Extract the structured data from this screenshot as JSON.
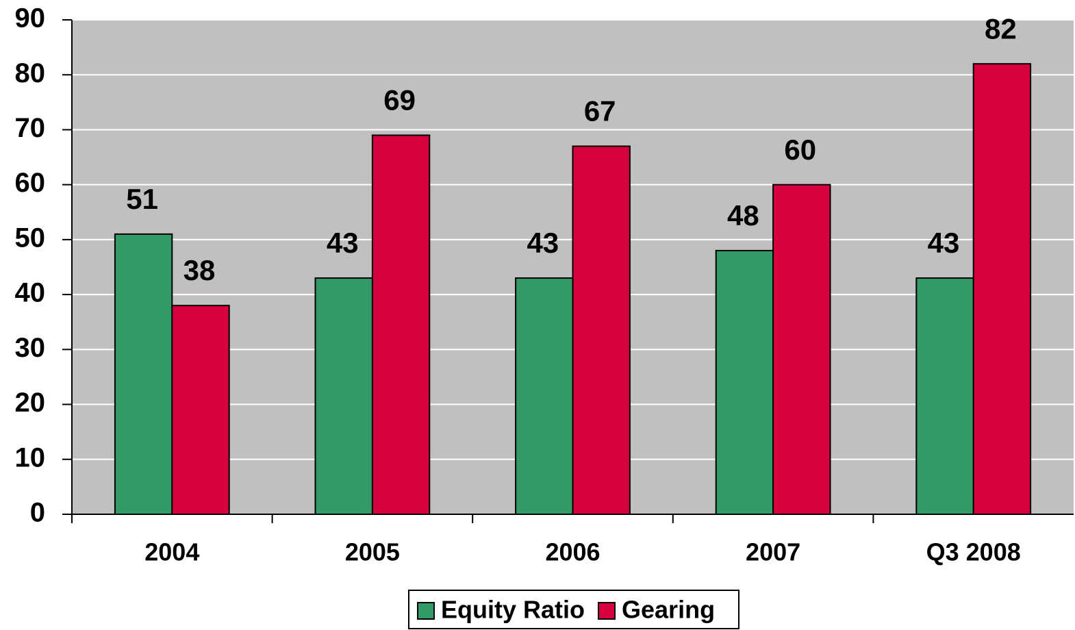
{
  "chart_data": {
    "type": "bar",
    "categories": [
      "2004",
      "2005",
      "2006",
      "2007",
      "Q3 2008"
    ],
    "series": [
      {
        "name": "Equity Ratio",
        "color": "#339966",
        "values": [
          51,
          43,
          43,
          48,
          43
        ]
      },
      {
        "name": "Gearing",
        "color": "#d6003f",
        "values": [
          38,
          69,
          67,
          60,
          82
        ]
      }
    ],
    "ylim": [
      0,
      90
    ],
    "yticks": [
      0,
      10,
      20,
      30,
      40,
      50,
      60,
      70,
      80,
      90
    ],
    "grid": true,
    "legend": "bottom"
  }
}
